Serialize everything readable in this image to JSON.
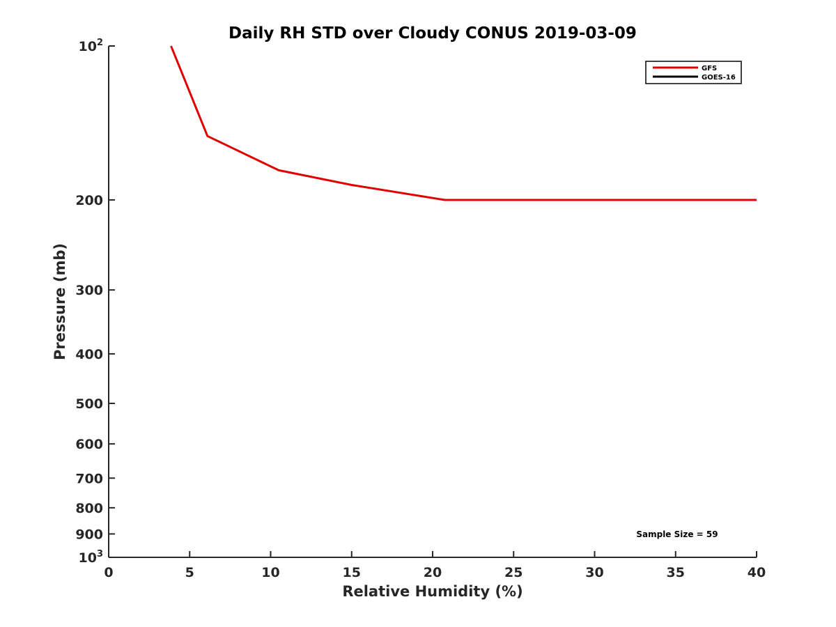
{
  "chart_data": {
    "type": "line",
    "title": "Daily RH STD over Cloudy CONUS 2019-03-09",
    "xlabel": "Relative Humidity (%)",
    "ylabel": "Pressure (mb)",
    "xlim": [
      0,
      40
    ],
    "ylim": [
      100,
      1000
    ],
    "y_scale": "log",
    "y_reversed": true,
    "x_ticks": [
      0,
      5,
      10,
      15,
      20,
      25,
      30,
      35,
      40
    ],
    "y_ticks": [
      {
        "value": 100,
        "base": "10",
        "exp": "2"
      },
      {
        "value": 200,
        "label": "200"
      },
      {
        "value": 300,
        "label": "300"
      },
      {
        "value": 400,
        "label": "400"
      },
      {
        "value": 500,
        "label": "500"
      },
      {
        "value": 600,
        "label": "600"
      },
      {
        "value": 700,
        "label": "700"
      },
      {
        "value": 800,
        "label": "800"
      },
      {
        "value": 900,
        "label": "900"
      },
      {
        "value": 1000,
        "base": "10",
        "exp": "3"
      }
    ],
    "grid": false,
    "legend_position": "top-right",
    "series": [
      {
        "name": "GFS",
        "color": "#e00000",
        "points": [
          {
            "x": 3.85,
            "y": 100
          },
          {
            "x": 6.1,
            "y": 150
          },
          {
            "x": 10.5,
            "y": 175
          },
          {
            "x": 15.0,
            "y": 187
          },
          {
            "x": 20.75,
            "y": 200
          },
          {
            "x": 40,
            "y": 200
          }
        ]
      },
      {
        "name": "GOES-16",
        "color": "#000000",
        "points": []
      }
    ],
    "annotations": [
      {
        "text": "Sample Size = 59",
        "position": "bottom-right"
      }
    ]
  }
}
